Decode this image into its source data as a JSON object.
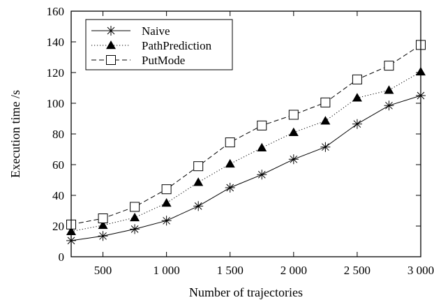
{
  "chart_data": {
    "type": "line",
    "xlabel": "Number of trajectories",
    "ylabel": "Execution time /s",
    "x": [
      250,
      500,
      750,
      1000,
      1250,
      1500,
      1750,
      2000,
      2250,
      2500,
      2750,
      3000
    ],
    "xlim": [
      250,
      3000
    ],
    "ylim": [
      0,
      160
    ],
    "xticks": [
      500,
      1000,
      1500,
      2000,
      2500,
      3000
    ],
    "xtick_labels": [
      "500",
      "1 000",
      "1 500",
      "2 000",
      "2 500",
      "3 000"
    ],
    "yticks": [
      0,
      20,
      40,
      60,
      80,
      100,
      120,
      140,
      160
    ],
    "ytick_labels": [
      "0",
      "20",
      "40",
      "60",
      "80",
      "100",
      "120",
      "140",
      "160"
    ],
    "grid": false,
    "legend_position": "top-left",
    "series": [
      {
        "name": "Naive",
        "marker": "asterisk",
        "line_style": "solid",
        "values": [
          10.5,
          13.5,
          18,
          23.5,
          33,
          45,
          53.5,
          63.5,
          71.5,
          86.5,
          98.5,
          105
        ]
      },
      {
        "name": "PathPrediction",
        "marker": "filled-triangle",
        "line_style": "dotted",
        "values": [
          16.5,
          20.5,
          25.5,
          35,
          48.5,
          60.5,
          71,
          81,
          88.5,
          103.5,
          108.5,
          120.5
        ]
      },
      {
        "name": "PutMode",
        "marker": "open-square",
        "line_style": "dashed",
        "values": [
          21,
          25,
          32.5,
          44,
          59,
          74.5,
          85.5,
          92.5,
          100.5,
          115.5,
          124.5,
          138
        ]
      }
    ]
  }
}
